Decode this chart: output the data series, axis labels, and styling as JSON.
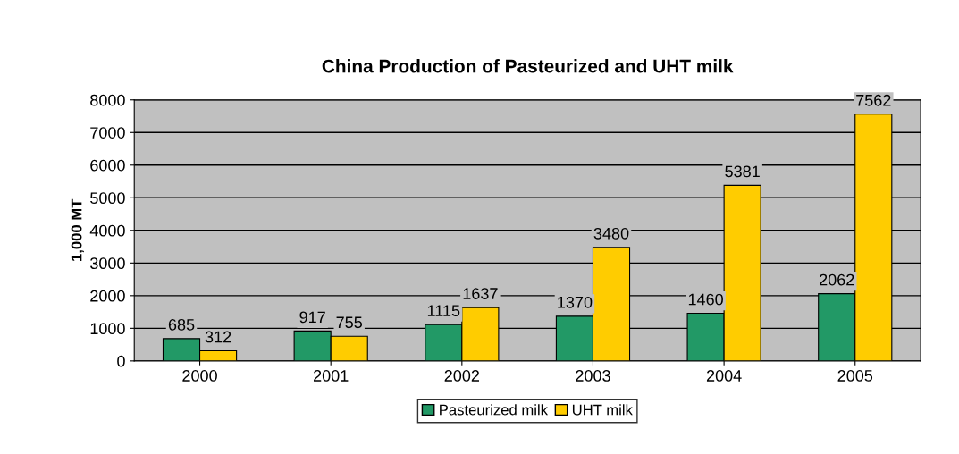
{
  "chart_data": {
    "type": "bar",
    "title": "China Production of Pasteurized and UHT milk",
    "ylabel": "1,000 MT",
    "categories": [
      "2000",
      "2001",
      "2002",
      "2003",
      "2004",
      "2005"
    ],
    "series": [
      {
        "name": "Pasteurized milk",
        "color": "#229966",
        "values": [
          685,
          917,
          1115,
          1370,
          1460,
          2062
        ]
      },
      {
        "name": "UHT milk",
        "color": "#ffcc00",
        "values": [
          312,
          755,
          1637,
          3480,
          5381,
          7562
        ]
      }
    ],
    "ylim": [
      0,
      8000
    ],
    "yticks": [
      0,
      1000,
      2000,
      3000,
      4000,
      5000,
      6000,
      7000,
      8000
    ],
    "grid": "y",
    "legend": "bottom",
    "data_labels": true
  }
}
